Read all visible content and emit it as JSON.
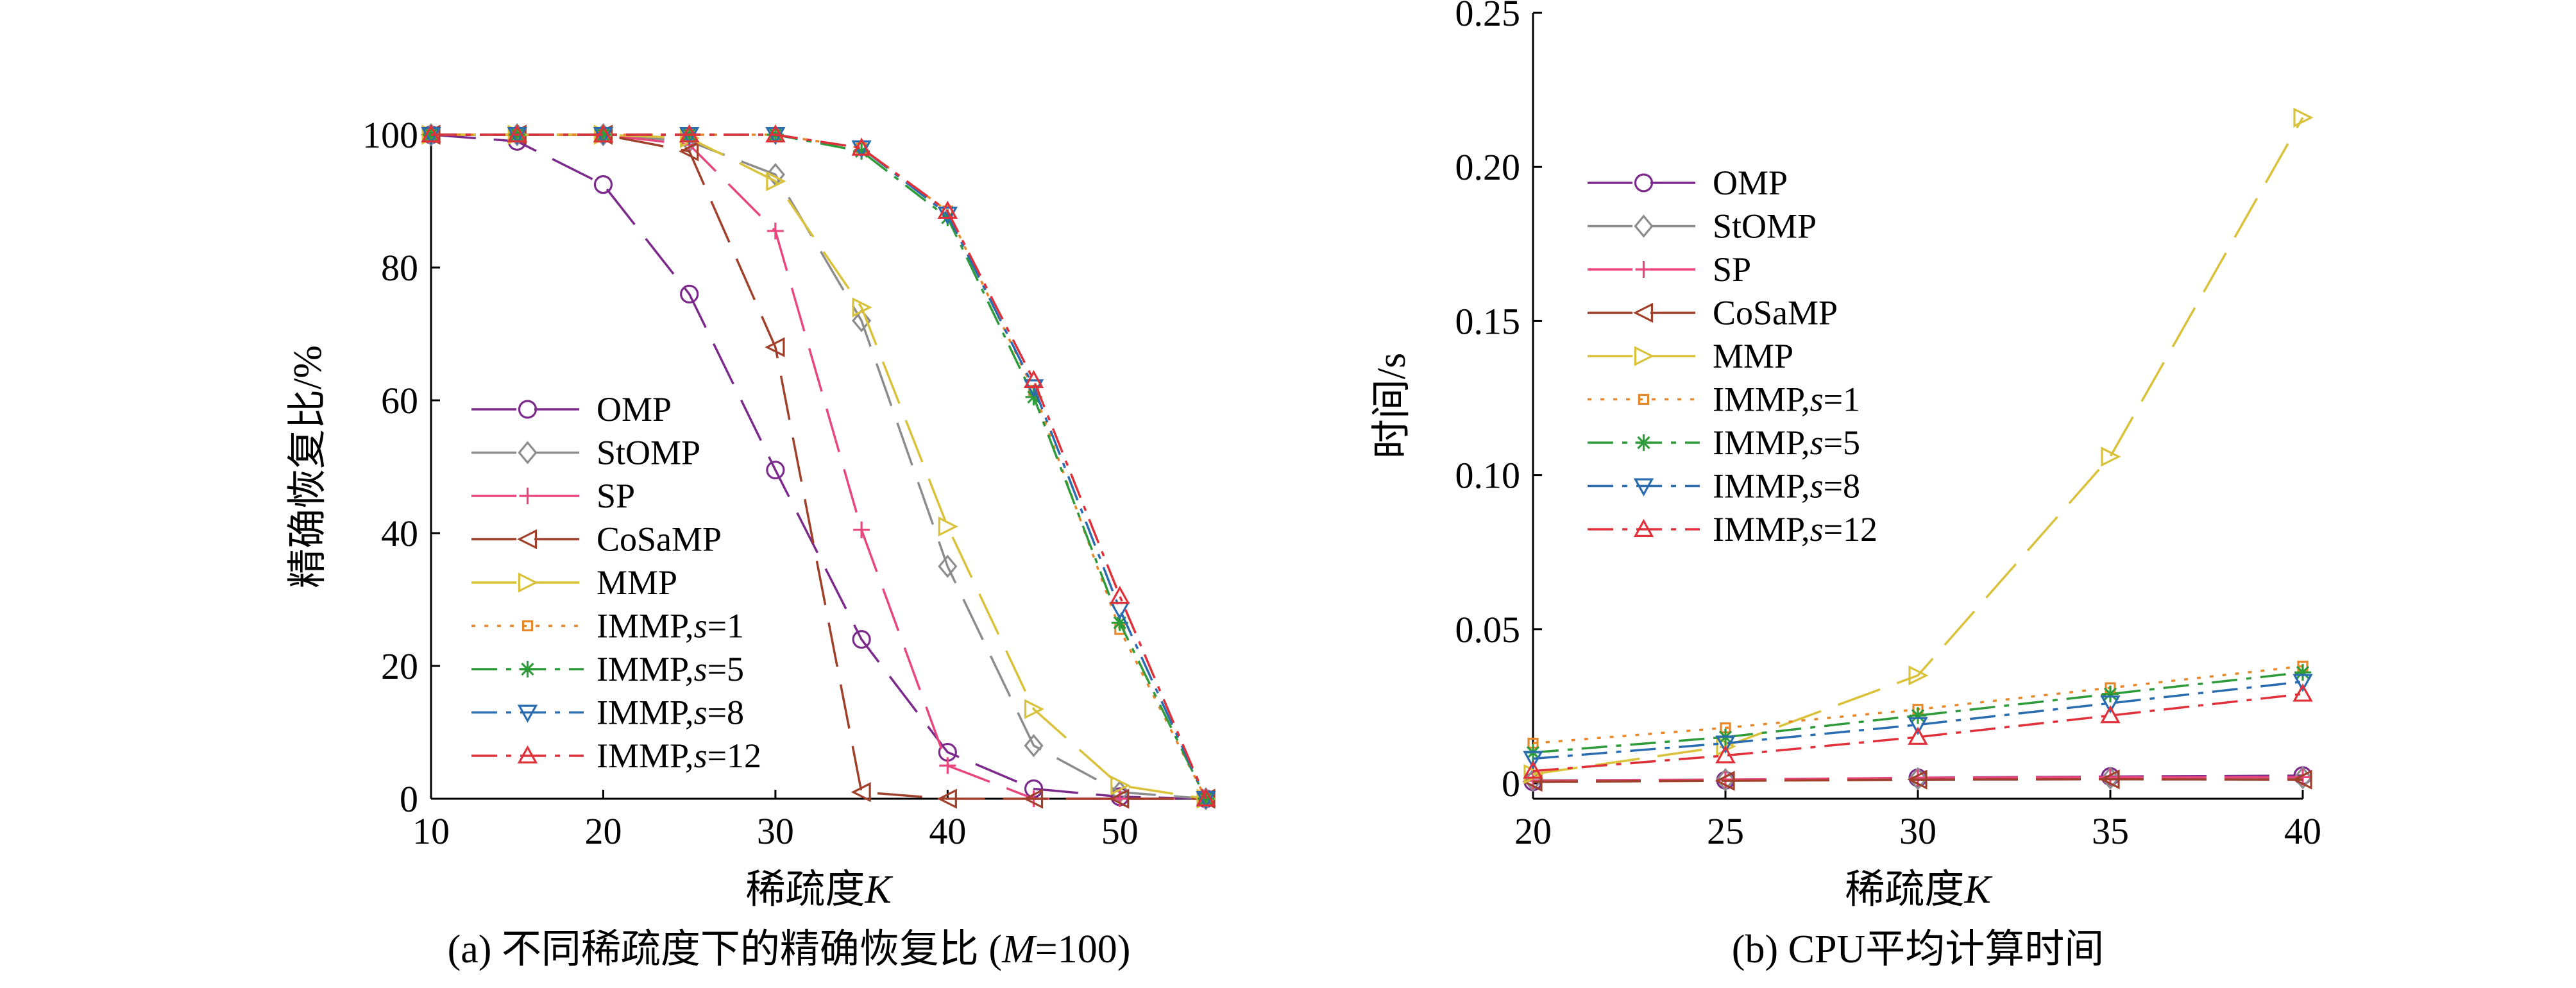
{
  "chart_data": [
    {
      "type": "line",
      "caption": "(a) 不同稀疏度下的精确恢复比 (M=100)",
      "caption_parts": {
        "prefix": "(a) 不同稀疏度下的精确恢复比 (",
        "italic": "M",
        "suffix": "=100)"
      },
      "xlabel": "稀疏度K",
      "xlabel_parts": {
        "text": "稀疏度",
        "italic": "K"
      },
      "ylabel": "精确恢复比/%",
      "xlim": [
        10,
        55
      ],
      "ylim": [
        0,
        100
      ],
      "xticks": [
        10,
        20,
        30,
        40,
        50
      ],
      "yticks": [
        0,
        20,
        40,
        60,
        80,
        100
      ],
      "legend_position": "bottom-left",
      "series": [
        {
          "name": "OMP",
          "base": "OMP",
          "s": "",
          "color": "#7B2A8C",
          "dash": "70,28",
          "marker": "circle",
          "x": [
            10,
            15,
            20,
            25,
            30,
            35,
            40,
            45,
            50,
            55
          ],
          "y": [
            100,
            99,
            92.5,
            76,
            49.5,
            24,
            7,
            1.5,
            0.3,
            0
          ]
        },
        {
          "name": "StOMP",
          "base": "StOMP",
          "s": "",
          "color": "#8C8C8C",
          "dash": "70,28",
          "marker": "diamond",
          "x": [
            10,
            15,
            20,
            25,
            30,
            35,
            40,
            45,
            50,
            55
          ],
          "y": [
            100,
            100,
            100,
            99,
            94,
            72,
            35,
            8,
            1,
            0
          ]
        },
        {
          "name": "SP",
          "base": "SP",
          "s": "",
          "color": "#E8467C",
          "dash": "70,28",
          "marker": "plus",
          "x": [
            10,
            15,
            20,
            25,
            30,
            35,
            40,
            45,
            50,
            55
          ],
          "y": [
            100,
            100,
            100,
            98.5,
            85.5,
            40.5,
            5,
            0,
            0,
            0
          ]
        },
        {
          "name": "CoSaMP",
          "base": "CoSaMP",
          "s": "",
          "color": "#A0402B",
          "dash": "70,28",
          "marker": "triangle-left",
          "x": [
            10,
            15,
            20,
            25,
            30,
            35,
            40,
            45,
            50,
            55
          ],
          "y": [
            100,
            100,
            100,
            97.5,
            68,
            1,
            0,
            0,
            0,
            0
          ]
        },
        {
          "name": "MMP",
          "base": "MMP",
          "s": "",
          "color": "#D9C23A",
          "dash": "70,28",
          "marker": "triangle-right",
          "x": [
            10,
            15,
            20,
            25,
            30,
            35,
            40,
            45,
            50,
            55
          ],
          "y": [
            100,
            100,
            100,
            99.5,
            93,
            74,
            41,
            13.5,
            2,
            0
          ]
        },
        {
          "name": "IMMP,s=1",
          "base": "IMMP,",
          "s": "s",
          "svalue": "=1",
          "color": "#E8872A",
          "dash": "6,14",
          "marker": "square",
          "x": [
            10,
            15,
            20,
            25,
            30,
            35,
            40,
            45,
            50,
            55
          ],
          "y": [
            100,
            100,
            100,
            100,
            100,
            98,
            88.5,
            61.5,
            25.5,
            0
          ]
        },
        {
          "name": "IMMP,s=5",
          "base": "IMMP,",
          "s": "s",
          "svalue": "=5",
          "color": "#2E9B3A",
          "dash": "40,14,8,14",
          "marker": "star",
          "x": [
            10,
            15,
            20,
            25,
            30,
            35,
            40,
            45,
            50,
            55
          ],
          "y": [
            100,
            100,
            100,
            100,
            100,
            97.5,
            87.5,
            60.5,
            26.5,
            0
          ]
        },
        {
          "name": "IMMP,s=8",
          "base": "IMMP,",
          "s": "s",
          "svalue": "=8",
          "color": "#2A6CB0",
          "dash": "40,14,8,14",
          "marker": "triangle-down",
          "x": [
            10,
            15,
            20,
            25,
            30,
            35,
            40,
            45,
            50,
            55
          ],
          "y": [
            100,
            100,
            100,
            100,
            100,
            98,
            88,
            62,
            28.5,
            0
          ]
        },
        {
          "name": "IMMP,s=12",
          "base": "IMMP,",
          "s": "s",
          "svalue": "=12",
          "color": "#E0303A",
          "dash": "40,14,8,14",
          "marker": "triangle-up",
          "x": [
            10,
            15,
            20,
            25,
            30,
            35,
            40,
            45,
            50,
            55
          ],
          "y": [
            100,
            100,
            100,
            100,
            100,
            98,
            88.5,
            63,
            30.5,
            0
          ]
        }
      ]
    },
    {
      "type": "line",
      "caption": "(b) CPU平均计算时间",
      "caption_parts": {
        "prefix": "(b) CPU平均计算时间",
        "italic": "",
        "suffix": ""
      },
      "xlabel": "稀疏度K",
      "xlabel_parts": {
        "text": "稀疏度",
        "italic": "K"
      },
      "ylabel": "时间/s",
      "xlim": [
        20,
        40
      ],
      "ylim": [
        -0.005,
        0.25
      ],
      "xticks": [
        20,
        25,
        30,
        35,
        40
      ],
      "yticks": [
        0,
        0.05,
        0.1,
        0.15,
        0.2,
        0.25
      ],
      "ytick_labels": [
        "0",
        "0.05",
        "0.10",
        "0.15",
        "0.20",
        "0.25"
      ],
      "legend_position": "top-left",
      "series": [
        {
          "name": "OMP",
          "base": "OMP",
          "s": "",
          "color": "#7B2A8C",
          "dash": "70,28",
          "marker": "circle",
          "x": [
            20,
            25,
            30,
            35,
            40
          ],
          "y": [
            0.0005,
            0.001,
            0.0018,
            0.0022,
            0.0025
          ]
        },
        {
          "name": "StOMP",
          "base": "StOMP",
          "s": "",
          "color": "#8C8C8C",
          "dash": "70,28",
          "marker": "diamond",
          "x": [
            20,
            25,
            30,
            35,
            40
          ],
          "y": [
            0.001,
            0.0012,
            0.0015,
            0.0017,
            0.0018
          ]
        },
        {
          "name": "SP",
          "base": "SP",
          "s": "",
          "color": "#E8467C",
          "dash": "70,28",
          "marker": "plus",
          "x": [
            20,
            25,
            30,
            35,
            40
          ],
          "y": [
            0.0008,
            0.0012,
            0.0018,
            0.002,
            0.002
          ]
        },
        {
          "name": "CoSaMP",
          "base": "CoSaMP",
          "s": "",
          "color": "#A0402B",
          "dash": "70,28",
          "marker": "triangle-left",
          "x": [
            20,
            25,
            30,
            35,
            40
          ],
          "y": [
            0.0005,
            0.0008,
            0.0012,
            0.0013,
            0.0012
          ]
        },
        {
          "name": "MMP",
          "base": "MMP",
          "s": "",
          "color": "#D9C23A",
          "dash": "70,28",
          "marker": "triangle-right",
          "x": [
            20,
            25,
            30,
            35,
            40
          ],
          "y": [
            0.003,
            0.012,
            0.035,
            0.106,
            0.216
          ]
        },
        {
          "name": "IMMP,s=1",
          "base": "IMMP,",
          "s": "s",
          "svalue": "=1",
          "color": "#E8872A",
          "dash": "6,14",
          "marker": "square",
          "x": [
            20,
            25,
            30,
            35,
            40
          ],
          "y": [
            0.013,
            0.018,
            0.024,
            0.031,
            0.038
          ]
        },
        {
          "name": "IMMP,s=5",
          "base": "IMMP,",
          "s": "s",
          "svalue": "=5",
          "color": "#2E9B3A",
          "dash": "40,14,8,14",
          "marker": "star",
          "x": [
            20,
            25,
            30,
            35,
            40
          ],
          "y": [
            0.01,
            0.015,
            0.022,
            0.029,
            0.036
          ]
        },
        {
          "name": "IMMP,s=8",
          "base": "IMMP,",
          "s": "s",
          "svalue": "=8",
          "color": "#2A6CB0",
          "dash": "40,14,8,14",
          "marker": "triangle-down",
          "x": [
            20,
            25,
            30,
            35,
            40
          ],
          "y": [
            0.008,
            0.013,
            0.019,
            0.026,
            0.033
          ]
        },
        {
          "name": "IMMP,s=12",
          "base": "IMMP,",
          "s": "s",
          "svalue": "=12",
          "color": "#E0303A",
          "dash": "40,14,8,14",
          "marker": "triangle-up",
          "x": [
            20,
            25,
            30,
            35,
            40
          ],
          "y": [
            0.004,
            0.009,
            0.015,
            0.022,
            0.029
          ]
        }
      ]
    }
  ]
}
